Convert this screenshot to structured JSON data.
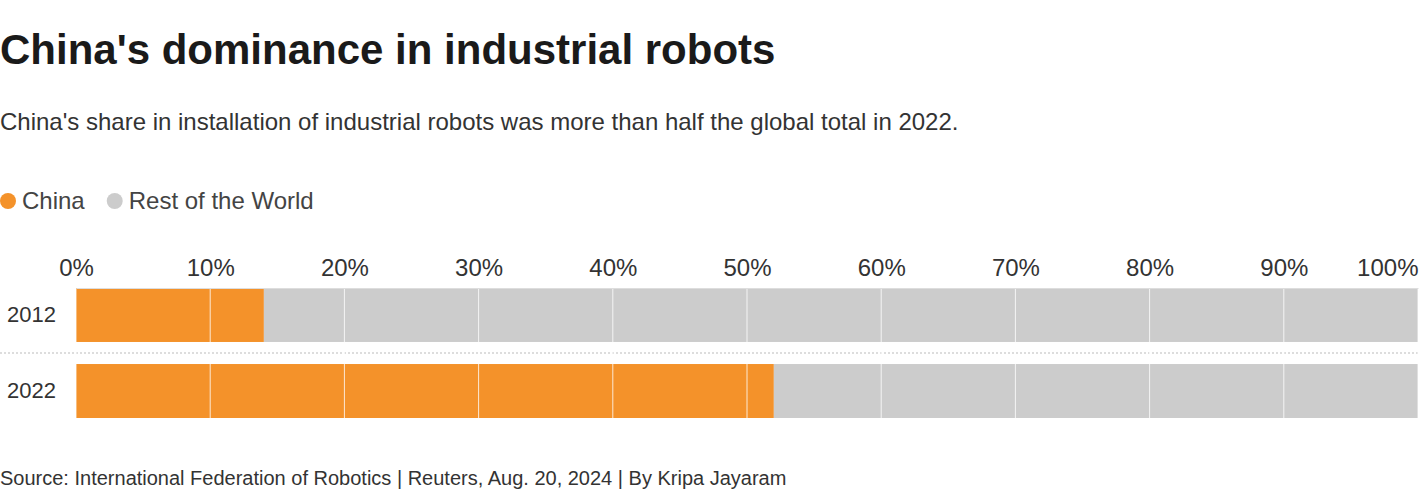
{
  "chart_data": {
    "type": "bar",
    "orientation": "horizontal",
    "stacked": true,
    "title": "China's dominance in industrial robots",
    "subtitle": "China's share in installation of industrial robots was more than half the global total in 2022.",
    "source": "Source: International Federation of Robotics | Reuters, Aug. 20, 2024 | By Kripa Jayaram",
    "categories": [
      "2012",
      "2022"
    ],
    "series": [
      {
        "name": "China",
        "color": "#f4922a",
        "values": [
          14,
          52
        ]
      },
      {
        "name": "Rest of the World",
        "color": "#cccccc",
        "values": [
          86,
          48
        ]
      }
    ],
    "xlim": [
      0,
      100
    ],
    "xticks": [
      {
        "value": 0,
        "label": "0%"
      },
      {
        "value": 10,
        "label": "10%"
      },
      {
        "value": 20,
        "label": "20%"
      },
      {
        "value": 30,
        "label": "30%"
      },
      {
        "value": 40,
        "label": "40%"
      },
      {
        "value": 50,
        "label": "50%"
      },
      {
        "value": 60,
        "label": "60%"
      },
      {
        "value": 70,
        "label": "70%"
      },
      {
        "value": 80,
        "label": "80%"
      },
      {
        "value": 90,
        "label": "90%"
      },
      {
        "value": 100,
        "label": "100%"
      }
    ],
    "grid": true,
    "legend": "top-left"
  }
}
